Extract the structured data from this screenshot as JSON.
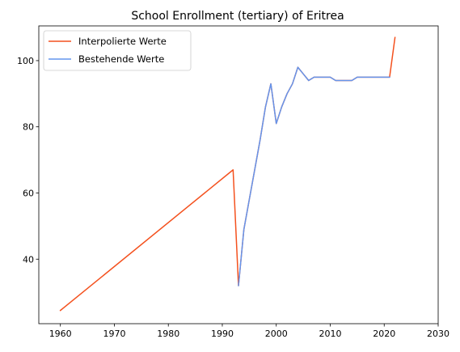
{
  "chart_data": {
    "type": "line",
    "title": "School Enrollment (tertiary) of Eritrea",
    "xlabel": "",
    "ylabel": "",
    "xlim": [
      1956,
      2030
    ],
    "ylim": [
      20.5,
      110.5
    ],
    "xticks": [
      1960,
      1970,
      1980,
      1990,
      2000,
      2010,
      2020,
      2030
    ],
    "yticks": [
      40,
      60,
      80,
      100
    ],
    "grid": false,
    "legend_position": "upper left",
    "series": [
      {
        "name": "Interpolierte Werte",
        "color": "#f4511e",
        "x": [
          1960,
          1992,
          1993,
          1994,
          1995,
          1996,
          1997,
          1998,
          1999,
          2000,
          2001,
          2002,
          2003,
          2004,
          2005,
          2006,
          2007,
          2008,
          2009,
          2010,
          2011,
          2012,
          2013,
          2014,
          2015,
          2016,
          2017,
          2018,
          2019,
          2020,
          2021,
          2022
        ],
        "y": [
          24.5,
          67,
          32,
          49,
          58,
          67,
          76,
          86,
          93,
          81,
          86,
          90,
          93,
          98,
          96,
          94,
          95,
          95,
          95,
          95,
          94,
          94,
          94,
          94,
          95,
          95,
          95,
          95,
          95,
          95,
          95,
          107
        ]
      },
      {
        "name": "Bestehende Werte",
        "color": "#6495ed",
        "x": [
          1993,
          1994,
          1995,
          1996,
          1997,
          1998,
          1999,
          2000,
          2001,
          2002,
          2003,
          2004,
          2005,
          2006,
          2007,
          2008,
          2009,
          2010,
          2011,
          2012,
          2013,
          2014,
          2015,
          2016,
          2017,
          2018,
          2019,
          2020,
          2021
        ],
        "y": [
          32,
          49,
          58,
          67,
          76,
          86,
          93,
          81,
          86,
          90,
          93,
          98,
          96,
          94,
          95,
          95,
          95,
          95,
          94,
          94,
          94,
          94,
          95,
          95,
          95,
          95,
          95,
          95,
          95
        ]
      }
    ]
  }
}
